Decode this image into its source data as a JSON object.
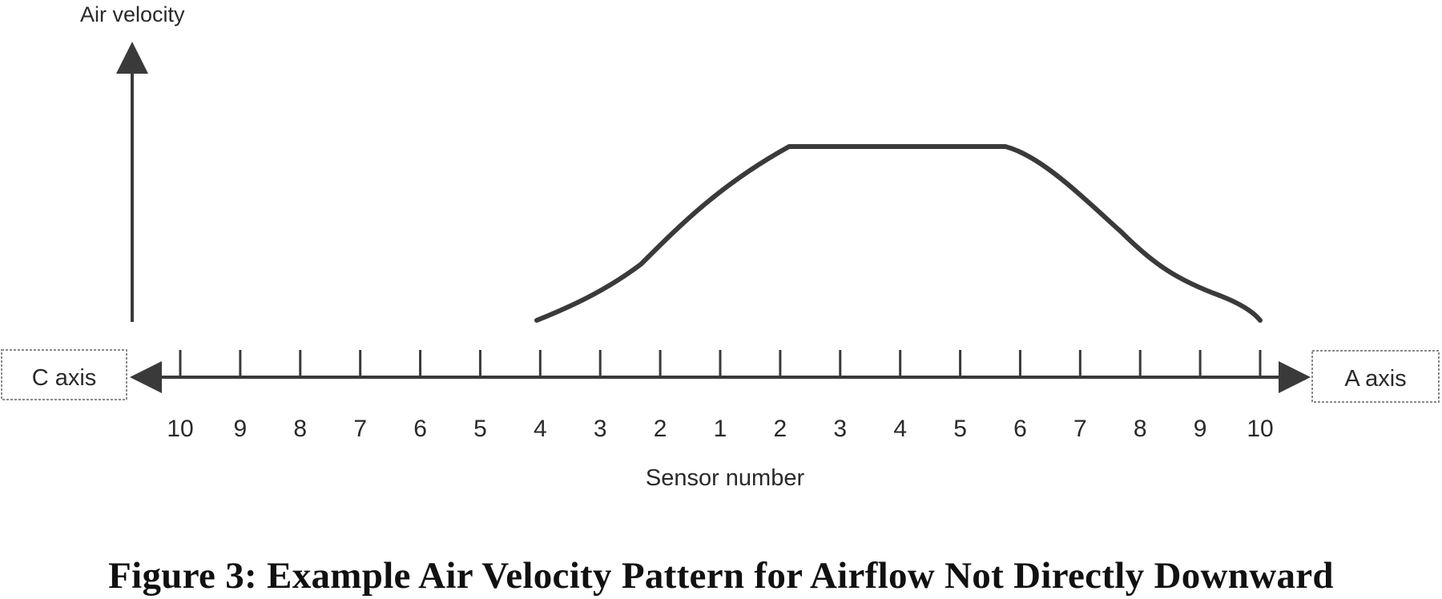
{
  "diagram": {
    "y_axis_label": "Air velocity",
    "left_box_label": "C axis",
    "right_box_label": "A axis",
    "x_axis_label": "Sensor number",
    "sensor_labels": [
      "10",
      "9",
      "8",
      "7",
      "6",
      "5",
      "4",
      "3",
      "2",
      "1",
      "2",
      "3",
      "4",
      "5",
      "6",
      "7",
      "8",
      "9",
      "10"
    ],
    "curve_note": "velocity profile: rises from C-side sensor 4, flat between A-side sensors 2 and 6, falls to A-side sensor 10"
  },
  "caption": "Figure 3:  Example Air Velocity Pattern for Airflow Not Directly Downward",
  "colors": {
    "line": "#3a3a3a",
    "box_border": "#8a8a8a",
    "text": "#2a2a2a"
  }
}
